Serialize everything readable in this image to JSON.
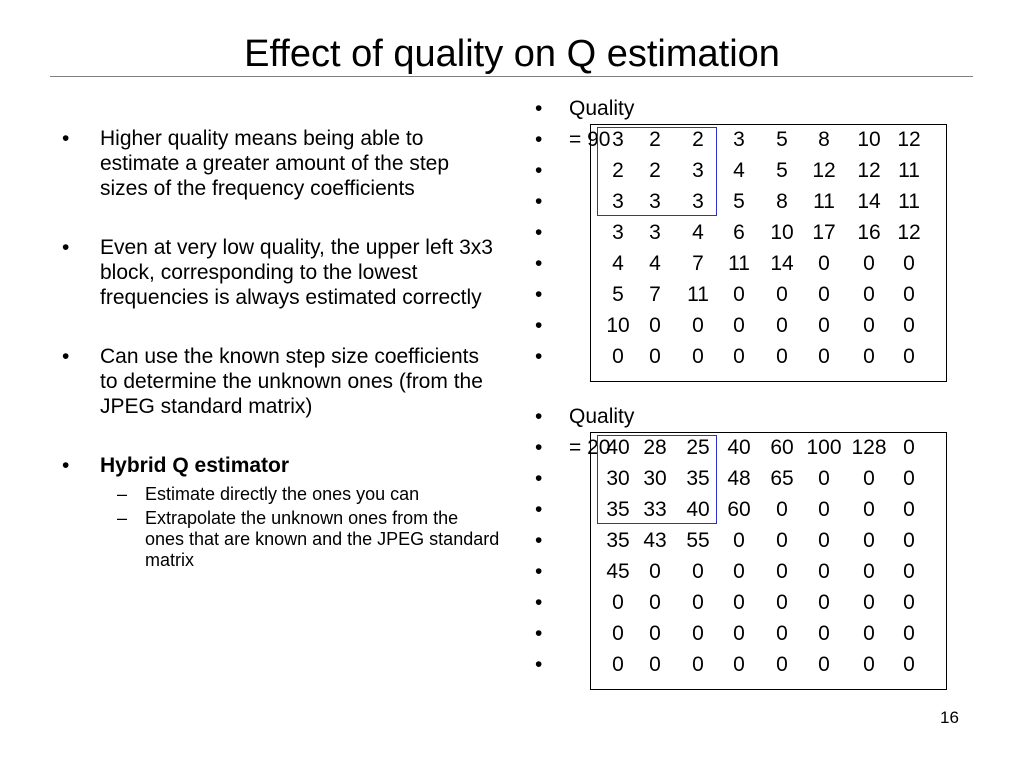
{
  "slide": {
    "title": "Effect of quality on Q estimation",
    "page_number": "16"
  },
  "left": {
    "bullet_glyph": "•",
    "dash_glyph": "–",
    "bullets": [
      "Higher quality means being able to estimate a greater amount of the step sizes of the frequency coefficients",
      "Even at very low quality, the upper left 3x3 block, corresponding to the lowest frequencies is always estimated correctly",
      "Can use the known step size coefficients to determine the unknown ones (from the JPEG standard matrix)",
      "Hybrid Q estimator"
    ],
    "sub_bullets": [
      "Estimate directly the ones you can",
      "Extrapolate the unknown ones from the ones that are known and the JPEG standard matrix"
    ]
  },
  "tables": [
    {
      "label": "Quality = 90",
      "rows": [
        [
          "3",
          "2",
          "2",
          "3",
          "5",
          "8",
          "10",
          "12"
        ],
        [
          "2",
          "2",
          "3",
          "4",
          "5",
          "12",
          "12",
          "11"
        ],
        [
          "3",
          "3",
          "3",
          "5",
          "8",
          "11",
          "14",
          "11"
        ],
        [
          "3",
          "3",
          "4",
          "6",
          "10",
          "17",
          "16",
          "12"
        ],
        [
          "4",
          "4",
          "7",
          "11",
          "14",
          "0",
          "0",
          "0"
        ],
        [
          "5",
          "7",
          "11",
          "0",
          "0",
          "0",
          "0",
          "0"
        ],
        [
          "10",
          "0",
          "0",
          "0",
          "0",
          "0",
          "0",
          "0"
        ],
        [
          "0",
          "0",
          "0",
          "0",
          "0",
          "0",
          "0",
          "0"
        ]
      ]
    },
    {
      "label": "Quality = 20",
      "rows": [
        [
          "40",
          "28",
          "25",
          "40",
          "60",
          "100",
          "128",
          "0"
        ],
        [
          "30",
          "30",
          "35",
          "48",
          "65",
          "0",
          "0",
          "0"
        ],
        [
          "35",
          "33",
          "40",
          "60",
          "0",
          "0",
          "0",
          "0"
        ],
        [
          "35",
          "43",
          "55",
          "0",
          "0",
          "0",
          "0",
          "0"
        ],
        [
          "45",
          "0",
          "0",
          "0",
          "0",
          "0",
          "0",
          "0"
        ],
        [
          "0",
          "0",
          "0",
          "0",
          "0",
          "0",
          "0",
          "0"
        ],
        [
          "0",
          "0",
          "0",
          "0",
          "0",
          "0",
          "0",
          "0"
        ],
        [
          "0",
          "0",
          "0",
          "0",
          "0",
          "0",
          "0",
          "0"
        ]
      ]
    }
  ],
  "colors": {
    "highlight_border": "#2a34c8",
    "title_rule": "#808080"
  }
}
